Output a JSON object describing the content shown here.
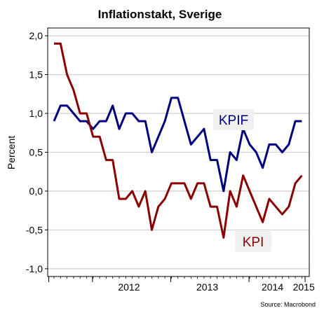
{
  "chart_data": {
    "type": "line",
    "title": "Inflationstakt, Sverige",
    "ylabel": "Percent",
    "ylim": [
      -1.1,
      2.1
    ],
    "y_ticks": [
      2.0,
      1.5,
      1.0,
      0.5,
      0.0,
      -0.5,
      -1.0
    ],
    "y_tick_labels": [
      "2,0",
      "1,5",
      "1,0",
      "0,5",
      "0,0",
      "-0,5",
      "-1,0"
    ],
    "x_tick_labels": [
      "2012",
      "2013",
      "2014",
      "2015"
    ],
    "grid": true,
    "source": "Source: Macrobond",
    "x_start": "2011-07",
    "series": [
      {
        "name": "KPIF",
        "color": "#00007f",
        "values": [
          0.9,
          1.1,
          1.1,
          1.0,
          0.9,
          0.9,
          0.8,
          0.9,
          0.9,
          1.1,
          0.8,
          1.0,
          1.0,
          0.9,
          0.9,
          0.5,
          0.7,
          0.9,
          1.2,
          1.2,
          0.9,
          0.6,
          0.7,
          0.8,
          0.4,
          0.4,
          0.0,
          0.5,
          0.4,
          0.8,
          0.6,
          0.5,
          0.3,
          0.6,
          0.6,
          0.5,
          0.6,
          0.9,
          0.9
        ]
      },
      {
        "name": "KPI",
        "color": "#8b0000",
        "values": [
          1.9,
          1.9,
          1.5,
          1.3,
          1.0,
          1.0,
          0.7,
          0.7,
          0.4,
          0.4,
          -0.1,
          -0.1,
          0.0,
          -0.2,
          0.0,
          -0.5,
          -0.2,
          -0.1,
          0.1,
          0.1,
          0.1,
          -0.1,
          0.1,
          0.1,
          -0.2,
          -0.2,
          -0.6,
          0.0,
          -0.2,
          0.2,
          0.0,
          -0.2,
          -0.4,
          -0.1,
          -0.2,
          -0.3,
          -0.2,
          0.1,
          0.2
        ]
      }
    ]
  }
}
